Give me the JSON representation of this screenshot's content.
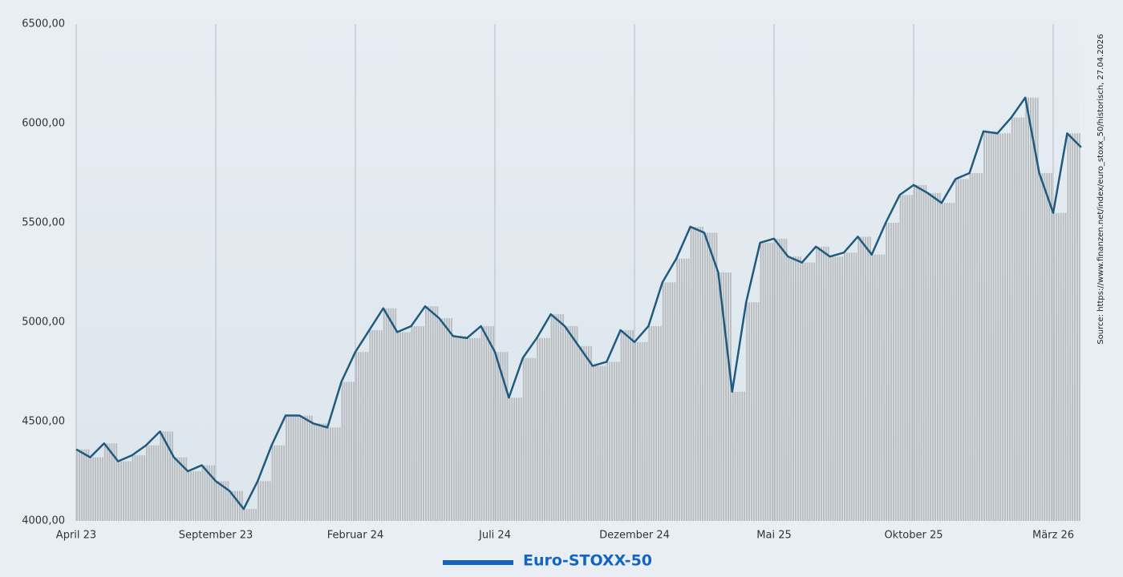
{
  "chart_data": {
    "type": "line",
    "categories": [
      "April 23",
      null,
      null,
      null,
      null,
      null,
      null,
      null,
      null,
      null,
      "September 23",
      null,
      null,
      null,
      null,
      null,
      null,
      null,
      null,
      null,
      "Februar 24",
      null,
      null,
      null,
      null,
      null,
      null,
      null,
      null,
      null,
      "Juli 24",
      null,
      null,
      null,
      null,
      null,
      null,
      null,
      null,
      null,
      "Dezember 24",
      null,
      null,
      null,
      null,
      null,
      null,
      null,
      null,
      null,
      "Mai 25",
      null,
      null,
      null,
      null,
      null,
      null,
      null,
      null,
      null,
      "Oktober 25",
      null,
      null,
      null,
      null,
      null,
      null,
      null,
      null,
      null,
      "März 26",
      null,
      null
    ],
    "series": [
      {
        "name": "Euro-STOXX-50",
        "color": "#1f5a7f",
        "legend_color": "#1565c0",
        "values": [
          4360,
          4320,
          4390,
          4300,
          4330,
          4380,
          4450,
          4320,
          4250,
          4280,
          4200,
          4150,
          4060,
          4200,
          4380,
          4530,
          4530,
          4490,
          4470,
          4700,
          4850,
          4960,
          5070,
          4950,
          4980,
          5080,
          5020,
          4930,
          4920,
          4980,
          4850,
          4620,
          4820,
          4920,
          5040,
          4980,
          4880,
          4780,
          4800,
          4960,
          4900,
          4980,
          5200,
          5320,
          5480,
          5450,
          5250,
          4650,
          5100,
          5400,
          5420,
          5330,
          5300,
          5380,
          5330,
          5350,
          5430,
          5340,
          5500,
          5640,
          5690,
          5650,
          5600,
          5720,
          5750,
          5960,
          5950,
          6030,
          6130,
          5750,
          5550,
          5950,
          5880
        ]
      }
    ],
    "ylim": [
      4000,
      6500
    ],
    "yticks": [
      {
        "value": 4000,
        "label": "4000,00"
      },
      {
        "value": 4500,
        "label": "4500,00"
      },
      {
        "value": 5000,
        "label": "5000,00"
      },
      {
        "value": 5500,
        "label": "5500,00"
      },
      {
        "value": 6000,
        "label": "6000,00"
      },
      {
        "value": 6500,
        "label": "6500,00"
      }
    ],
    "grid": true,
    "source": "Source: https://www.finanzen.net/index/euro_stoxx_50/historisch, 27.04.2026"
  }
}
